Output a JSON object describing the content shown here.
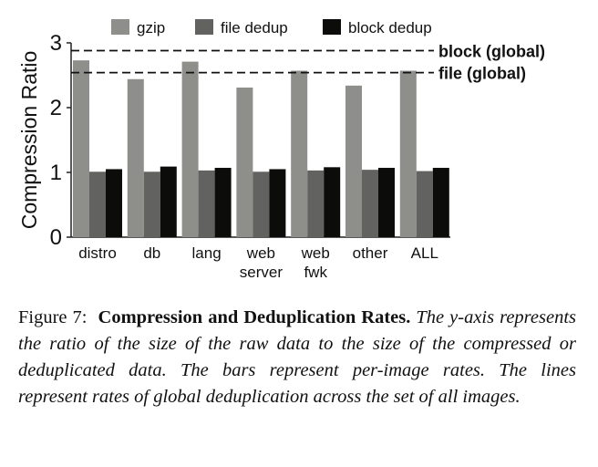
{
  "chart_data": {
    "type": "bar",
    "ylabel": "Compression Ratio",
    "ylim": [
      0,
      3
    ],
    "yticks": [
      "0",
      "1",
      "2",
      "3"
    ],
    "categories": [
      [
        "distro"
      ],
      [
        "db"
      ],
      [
        "lang"
      ],
      [
        "web",
        "server"
      ],
      [
        "web",
        "fwk"
      ],
      [
        "other"
      ],
      [
        "ALL"
      ]
    ],
    "series": [
      {
        "name": "gzip",
        "color": "#8e8e8b",
        "values": [
          2.73,
          2.44,
          2.71,
          2.31,
          2.57,
          2.34,
          2.57
        ]
      },
      {
        "name": "file dedup",
        "color": "#626260",
        "values": [
          1.01,
          1.01,
          1.03,
          1.01,
          1.03,
          1.04,
          1.02
        ]
      },
      {
        "name": "block dedup",
        "color": "#0c0c0a",
        "values": [
          1.05,
          1.09,
          1.07,
          1.05,
          1.08,
          1.07,
          1.07
        ]
      }
    ],
    "reference_lines": [
      {
        "label": "block (global)",
        "value": 2.88,
        "style": "dashed"
      },
      {
        "label": "file (global)",
        "value": 2.54,
        "style": "dashed"
      }
    ],
    "legend": "top",
    "grid": false
  },
  "caption": {
    "label": "Figure 7:",
    "title": "Compression and Deduplication Rates.",
    "text": "The y-axis represents the ratio of the size of the raw data to the size of the compressed or deduplicated data. The bars represent per-image rates. The lines represent rates of global deduplication across the set of all images."
  }
}
